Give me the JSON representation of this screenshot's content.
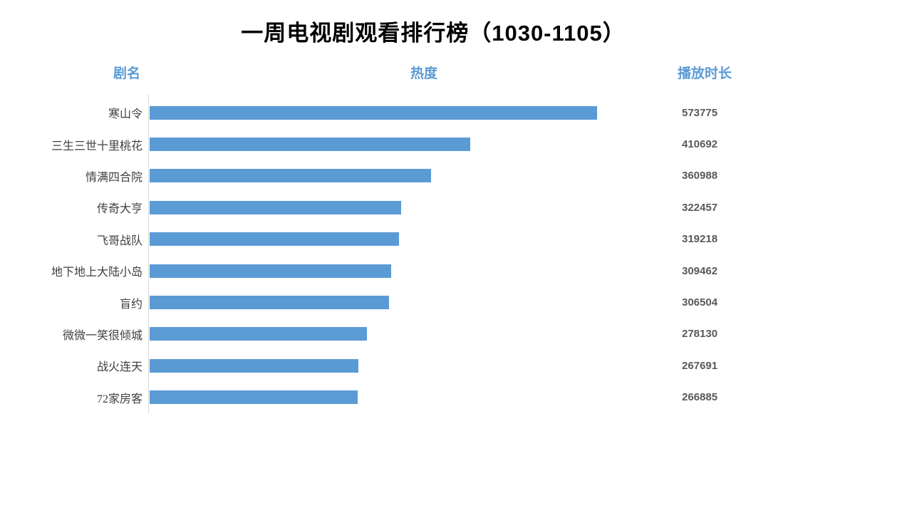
{
  "title": "一周电视剧观看排行榜（1030-1105）",
  "columns": {
    "name": "剧名",
    "heat": "热度",
    "duration": "播放时长"
  },
  "colors": {
    "bar": "#5B9BD5",
    "header_text": "#5B9BD5",
    "value_text": "#595959",
    "label_text": "#3F3F3F",
    "axis_line": "#D9D9D9",
    "title_text": "#000000",
    "background": "#FFFFFF"
  },
  "chart_data": {
    "type": "bar",
    "orientation": "horizontal",
    "title": "一周电视剧观看排行榜（1030-1105）",
    "categories": [
      "寒山令",
      "三生三世十里桃花",
      "情满四合院",
      "传奇大亨",
      "飞哥战队",
      "地下地上大陆小岛",
      "盲约",
      "微微一笑很倾城",
      "战火连天",
      "72家房客"
    ],
    "values": [
      573775,
      410692,
      360988,
      322457,
      319218,
      309462,
      306504,
      278130,
      267691,
      266885
    ],
    "xlabel": "热度",
    "ylabel": "剧名",
    "value_column_label": "播放时长",
    "xlim": [
      0,
      600000
    ],
    "grid": false,
    "legend": false,
    "bars_sorted_descending": true
  }
}
